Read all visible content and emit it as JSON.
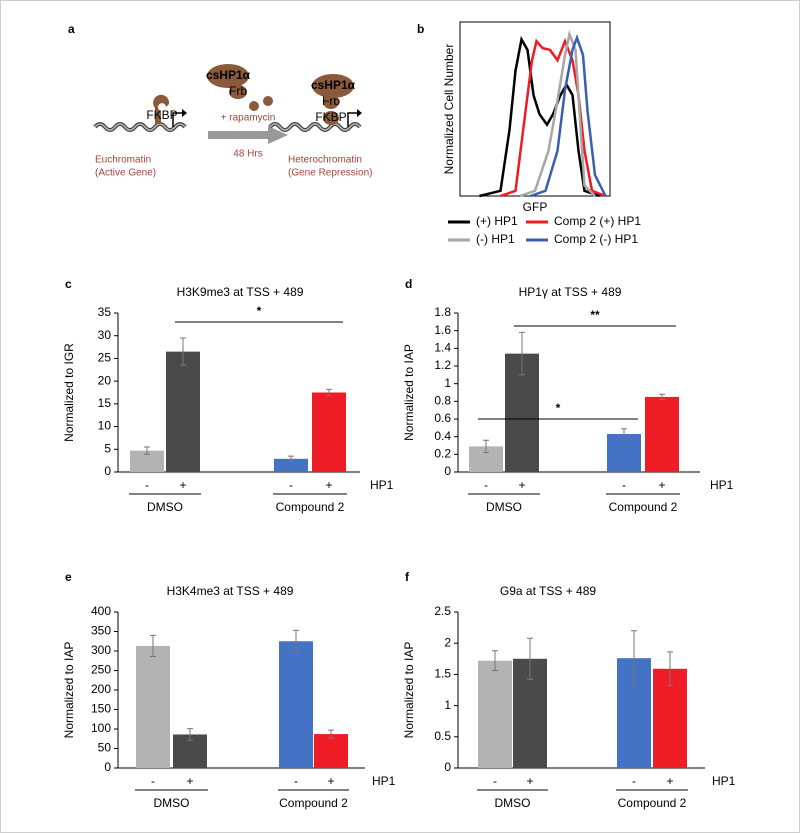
{
  "diagram": {
    "panel": "a",
    "protein_free": "csHP1α",
    "frb_free": "Frb",
    "fkbp_left": "FKBP",
    "treatment": "+ rapamycin",
    "duration": "48 Hrs",
    "protein_bound": "csHP1α",
    "frb_bound": "Frb",
    "fkbp_right": "FKBP",
    "left_title": "Euchromatin",
    "left_sub": "(Active Gene)",
    "right_title": "Heterochromatin",
    "right_sub": "(Gene Repression)"
  },
  "chart_data": [
    {
      "type": "line",
      "panel": "b",
      "x_label": "GFP",
      "y_label": "Normalized Cell Number",
      "xlim": [
        0,
        100
      ],
      "ylim": [
        0,
        100
      ],
      "series": [
        {
          "name": "(+) HP1",
          "color": "#000000",
          "x": [
            13,
            27,
            33,
            37,
            41,
            45,
            49,
            53,
            58,
            62,
            67,
            71,
            75,
            79,
            83,
            93
          ],
          "values": [
            0,
            3,
            38,
            72,
            90,
            84,
            58,
            47,
            41,
            47,
            58,
            64,
            58,
            26,
            3,
            0
          ]
        },
        {
          "name": "Comp 2 (+) HP1",
          "color": "#ee1c25",
          "x": [
            27,
            37,
            43,
            48,
            51,
            55,
            60,
            65,
            70,
            75,
            79,
            83,
            88,
            97
          ],
          "values": [
            0,
            3,
            44,
            78,
            89,
            85,
            84,
            78,
            89,
            78,
            58,
            26,
            3,
            0
          ]
        },
        {
          "name": "(-) HP1",
          "color": "#a6a6a6",
          "x": [
            40,
            50,
            59,
            65,
            70,
            73,
            77,
            80,
            83,
            90
          ],
          "values": [
            0,
            3,
            26,
            55,
            81,
            93,
            84,
            44,
            6,
            0
          ]
        },
        {
          "name": "Comp 2 (-) HP1",
          "color": "#3a5fb0",
          "x": [
            47,
            57,
            65,
            70,
            75,
            78,
            82,
            85,
            90,
            97
          ],
          "values": [
            0,
            3,
            26,
            61,
            84,
            91,
            81,
            49,
            12,
            0
          ]
        }
      ]
    },
    {
      "type": "bar",
      "panel": "c",
      "title": "H3K9me3 at TSS + 489",
      "y_label": "Normalized to IGR",
      "categories": [
        "-",
        "+",
        "-",
        "+"
      ],
      "groups": [
        "DMSO",
        "Compound 2"
      ],
      "group_label": "HP1",
      "values": [
        4.7,
        26.5,
        2.9,
        17.5
      ],
      "errors": [
        0.8,
        3.0,
        0.6,
        0.7
      ],
      "colors": [
        "#b3b3b3",
        "#4a4a4a",
        "#4472c4",
        "#ee1c25"
      ],
      "ylim": [
        0,
        35
      ],
      "yticks": [
        0,
        5,
        10,
        15,
        20,
        25,
        30,
        35
      ],
      "annotations": [
        "*"
      ]
    },
    {
      "type": "bar",
      "panel": "d",
      "title": "HP1γ at TSS + 489",
      "y_label": "Normalized to IAP",
      "categories": [
        "-",
        "+",
        "-",
        "+"
      ],
      "groups": [
        "DMSO",
        "Compound 2"
      ],
      "group_label": "HP1",
      "values": [
        0.29,
        1.34,
        0.43,
        0.85
      ],
      "errors": [
        0.07,
        0.24,
        0.06,
        0.03
      ],
      "colors": [
        "#b3b3b3",
        "#4a4a4a",
        "#4472c4",
        "#ee1c25"
      ],
      "ylim": [
        0,
        1.8
      ],
      "yticks": [
        0,
        0.2,
        0.4,
        0.6,
        0.8,
        1,
        1.2,
        1.4,
        1.6,
        1.8
      ],
      "annotations": [
        "**",
        "*"
      ]
    },
    {
      "type": "bar",
      "panel": "e",
      "title": "H3K4me3 at TSS + 489",
      "y_label": "Normalized to IAP",
      "categories": [
        "-",
        "+",
        "-",
        "+"
      ],
      "groups": [
        "DMSO",
        "Compound 2"
      ],
      "group_label": "HP1",
      "values": [
        313,
        86,
        325,
        87
      ],
      "errors": [
        27,
        15,
        28,
        10
      ],
      "colors": [
        "#b3b3b3",
        "#4a4a4a",
        "#4472c4",
        "#ee1c25"
      ],
      "ylim": [
        0,
        400
      ],
      "yticks": [
        0,
        50,
        100,
        150,
        200,
        250,
        300,
        350,
        400
      ],
      "annotations": []
    },
    {
      "type": "bar",
      "panel": "f",
      "title": "G9a at TSS + 489",
      "y_label": "Normalized to IAP",
      "categories": [
        "-",
        "+",
        "-",
        "+"
      ],
      "groups": [
        "DMSO",
        "Compound 2"
      ],
      "group_label": "HP1",
      "values": [
        1.72,
        1.75,
        1.76,
        1.59
      ],
      "errors": [
        0.16,
        0.33,
        0.44,
        0.27
      ],
      "colors": [
        "#b3b3b3",
        "#4a4a4a",
        "#4472c4",
        "#ee1c25"
      ],
      "ylim": [
        0,
        2.5
      ],
      "yticks": [
        0,
        0.5,
        1,
        1.5,
        2,
        2.5
      ],
      "annotations": []
    }
  ]
}
